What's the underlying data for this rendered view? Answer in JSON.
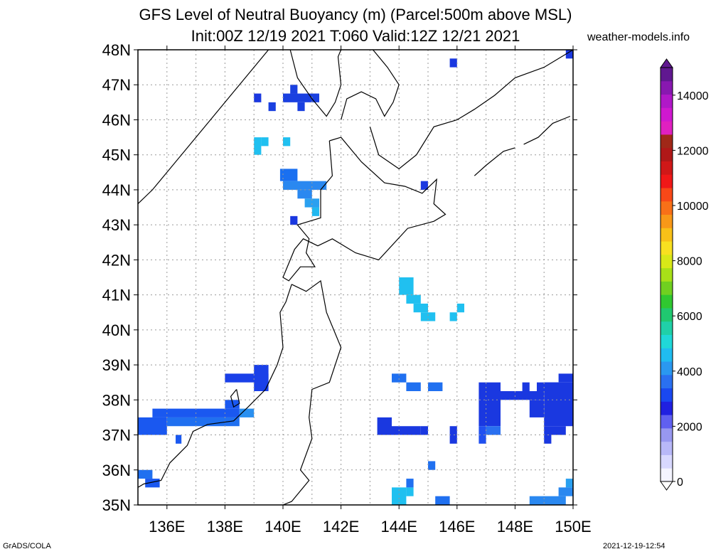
{
  "title_line1": "GFS Level of Neutral Buoyancy (m) (Parcel:500m above MSL)",
  "title_line2": "Init:00Z 12/19 2021 T:060 Valid:12Z 12/21 2021",
  "site": "weather-models.info",
  "footer_left": "GrADS/COLA",
  "footer_right": "2021-12-19-12:54",
  "map": {
    "lon_range": [
      135,
      150
    ],
    "lat_range": [
      35,
      48
    ],
    "lat_labels": [
      "48N",
      "47N",
      "46N",
      "45N",
      "44N",
      "43N",
      "42N",
      "41N",
      "40N",
      "39N",
      "38N",
      "37N",
      "36N",
      "35N"
    ],
    "lon_labels": [
      "136E",
      "138E",
      "140E",
      "142E",
      "144E",
      "146E",
      "148E",
      "150E"
    ],
    "grid": "dotted"
  },
  "colorbar": {
    "labels": [
      "0",
      "2000",
      "4000",
      "6000",
      "8000",
      "10000",
      "12000",
      "14000"
    ],
    "colors": [
      "#f4f4ff",
      "#d8d8ff",
      "#b8b8f8",
      "#9898f0",
      "#6060f0",
      "#2020e0",
      "#1a48f0",
      "#2a70f0",
      "#2a98f0",
      "#20bcf0",
      "#20d8d8",
      "#20d0a8",
      "#20c870",
      "#30c830",
      "#70d020",
      "#a8e018",
      "#d8e818",
      "#f8e020",
      "#f8c018",
      "#f89818",
      "#f87018",
      "#f84818",
      "#f01818",
      "#d01818",
      "#b01818",
      "#a02818",
      "#e020c0",
      "#d018d0",
      "#b018c8",
      "#8818b0",
      "#601890"
    ]
  },
  "data_cells": [
    {
      "lon": 138.0,
      "lat": 38.5,
      "lon2": 139.5,
      "lat2": 38.75,
      "color": "#1a40e8"
    },
    {
      "lon": 139.0,
      "lat": 38.25,
      "lon2": 139.5,
      "lat2": 39.0,
      "color": "#1a40e8"
    },
    {
      "lon": 135.0,
      "lat": 37.0,
      "lon2": 136.0,
      "lat2": 37.5,
      "color": "#1a58f0"
    },
    {
      "lon": 135.5,
      "lat": 37.5,
      "lon2": 138.5,
      "lat2": 37.75,
      "color": "#1a58f0"
    },
    {
      "lon": 136.0,
      "lat": 37.25,
      "lon2": 138.5,
      "lat2": 37.5,
      "color": "#2070f0"
    },
    {
      "lon": 138.0,
      "lat": 37.75,
      "lon2": 138.5,
      "lat2": 38.0,
      "color": "#1a58f0"
    },
    {
      "lon": 138.5,
      "lat": 37.5,
      "lon2": 139.0,
      "lat2": 37.75,
      "color": "#2a90f0"
    },
    {
      "lon": 136.3,
      "lat": 36.75,
      "lon2": 136.5,
      "lat2": 37.0,
      "color": "#1a58f0"
    },
    {
      "lon": 135.0,
      "lat": 35.75,
      "lon2": 135.5,
      "lat2": 36.0,
      "color": "#2070f0"
    },
    {
      "lon": 135.25,
      "lat": 35.5,
      "lon2": 135.75,
      "lat2": 35.75,
      "color": "#1a58f0"
    },
    {
      "lon": 139.9,
      "lat": 44.25,
      "lon2": 140.5,
      "lat2": 44.6,
      "color": "#1a70f0"
    },
    {
      "lon": 140.0,
      "lat": 44.0,
      "lon2": 141.5,
      "lat2": 44.25,
      "color": "#2a88f0"
    },
    {
      "lon": 140.5,
      "lat": 43.75,
      "lon2": 141.0,
      "lat2": 44.0,
      "color": "#2a88f0"
    },
    {
      "lon": 140.75,
      "lat": 43.5,
      "lon2": 141.25,
      "lat2": 43.75,
      "color": "#2aa0f0"
    },
    {
      "lon": 141.0,
      "lat": 43.25,
      "lon2": 141.25,
      "lat2": 43.5,
      "color": "#20b8f0"
    },
    {
      "lon": 140.25,
      "lat": 43.0,
      "lon2": 140.5,
      "lat2": 43.25,
      "color": "#1a38e0"
    },
    {
      "lon": 139.0,
      "lat": 45.0,
      "lon2": 139.25,
      "lat2": 45.5,
      "color": "#20c0f0"
    },
    {
      "lon": 139.25,
      "lat": 45.25,
      "lon2": 139.5,
      "lat2": 45.5,
      "color": "#20c0f0"
    },
    {
      "lon": 140.0,
      "lat": 45.25,
      "lon2": 140.25,
      "lat2": 45.5,
      "color": "#20c0f0"
    },
    {
      "lon": 139.0,
      "lat": 46.5,
      "lon2": 139.25,
      "lat2": 46.75,
      "color": "#1a38e0"
    },
    {
      "lon": 139.5,
      "lat": 46.25,
      "lon2": 139.75,
      "lat2": 46.5,
      "color": "#1a40e0"
    },
    {
      "lon": 140.0,
      "lat": 46.5,
      "lon2": 141.25,
      "lat2": 46.75,
      "color": "#1a40e0"
    },
    {
      "lon": 140.25,
      "lat": 46.75,
      "lon2": 140.5,
      "lat2": 47.0,
      "color": "#1a40e0"
    },
    {
      "lon": 140.5,
      "lat": 46.25,
      "lon2": 140.75,
      "lat2": 46.5,
      "color": "#1a40e0"
    },
    {
      "lon": 145.75,
      "lat": 47.5,
      "lon2": 146.0,
      "lat2": 47.75,
      "color": "#1a38e0"
    },
    {
      "lon": 149.75,
      "lat": 47.75,
      "lon2": 150.0,
      "lat2": 48.0,
      "color": "#1a38e0"
    },
    {
      "lon": 144.75,
      "lat": 44.0,
      "lon2": 145.0,
      "lat2": 44.25,
      "color": "#1a38e0"
    },
    {
      "lon": 144.0,
      "lat": 41.0,
      "lon2": 144.5,
      "lat2": 41.5,
      "color": "#20c0f0"
    },
    {
      "lon": 144.25,
      "lat": 40.75,
      "lon2": 144.75,
      "lat2": 41.0,
      "color": "#20c0f0"
    },
    {
      "lon": 144.5,
      "lat": 40.5,
      "lon2": 145.0,
      "lat2": 40.75,
      "color": "#20c0f0"
    },
    {
      "lon": 144.75,
      "lat": 40.25,
      "lon2": 145.25,
      "lat2": 40.5,
      "color": "#20c0f0"
    },
    {
      "lon": 145.75,
      "lat": 40.25,
      "lon2": 146.0,
      "lat2": 40.5,
      "color": "#20c0f0"
    },
    {
      "lon": 146.0,
      "lat": 40.5,
      "lon2": 146.25,
      "lat2": 40.75,
      "color": "#20c0f0"
    },
    {
      "lon": 143.75,
      "lat": 38.5,
      "lon2": 144.25,
      "lat2": 38.75,
      "color": "#2070f0"
    },
    {
      "lon": 144.25,
      "lat": 38.25,
      "lon2": 144.75,
      "lat2": 38.5,
      "color": "#2070f0"
    },
    {
      "lon": 145.0,
      "lat": 38.25,
      "lon2": 145.5,
      "lat2": 38.5,
      "color": "#2070f0"
    },
    {
      "lon": 143.25,
      "lat": 37.0,
      "lon2": 143.75,
      "lat2": 37.5,
      "color": "#1a38e0"
    },
    {
      "lon": 143.75,
      "lat": 37.0,
      "lon2": 144.75,
      "lat2": 37.25,
      "color": "#1a38e0"
    },
    {
      "lon": 144.75,
      "lat": 37.0,
      "lon2": 145.0,
      "lat2": 37.25,
      "color": "#1a38e0"
    },
    {
      "lon": 145.75,
      "lat": 36.75,
      "lon2": 146.0,
      "lat2": 37.25,
      "color": "#1a38e0"
    },
    {
      "lon": 145.0,
      "lat": 36.0,
      "lon2": 145.25,
      "lat2": 36.25,
      "color": "#2070f0"
    },
    {
      "lon": 146.75,
      "lat": 37.25,
      "lon2": 147.5,
      "lat2": 38.5,
      "color": "#1a38e0"
    },
    {
      "lon": 147.5,
      "lat": 38.0,
      "lon2": 149.0,
      "lat2": 38.25,
      "color": "#1a38e0"
    },
    {
      "lon": 146.75,
      "lat": 36.75,
      "lon2": 147.0,
      "lat2": 37.25,
      "color": "#2050f0"
    },
    {
      "lon": 147.0,
      "lat": 37.0,
      "lon2": 147.5,
      "lat2": 37.25,
      "color": "#2a70f0"
    },
    {
      "lon": 148.25,
      "lat": 38.25,
      "lon2": 148.5,
      "lat2": 38.5,
      "color": "#1a38e0"
    },
    {
      "lon": 148.75,
      "lat": 38.25,
      "lon2": 149.5,
      "lat2": 38.5,
      "color": "#1a38e0"
    },
    {
      "lon": 149.5,
      "lat": 38.5,
      "lon2": 150.0,
      "lat2": 38.75,
      "color": "#1a38e0"
    },
    {
      "lon": 149.0,
      "lat": 37.25,
      "lon2": 150.0,
      "lat2": 38.5,
      "color": "#1a38e0"
    },
    {
      "lon": 148.5,
      "lat": 37.5,
      "lon2": 149.0,
      "lat2": 38.0,
      "color": "#1a38e0"
    },
    {
      "lon": 149.0,
      "lat": 37.0,
      "lon2": 149.75,
      "lat2": 37.25,
      "color": "#1a38e0"
    },
    {
      "lon": 149.0,
      "lat": 36.75,
      "lon2": 149.25,
      "lat2": 37.0,
      "color": "#1a38e0"
    },
    {
      "lon": 143.75,
      "lat": 35.0,
      "lon2": 144.25,
      "lat2": 35.5,
      "color": "#20c0f0"
    },
    {
      "lon": 144.25,
      "lat": 35.25,
      "lon2": 144.5,
      "lat2": 35.5,
      "color": "#20c0f0"
    },
    {
      "lon": 144.25,
      "lat": 35.5,
      "lon2": 144.5,
      "lat2": 35.75,
      "color": "#2070f0"
    },
    {
      "lon": 145.25,
      "lat": 35.0,
      "lon2": 145.75,
      "lat2": 35.25,
      "color": "#2070f0"
    },
    {
      "lon": 148.5,
      "lat": 35.0,
      "lon2": 149.75,
      "lat2": 35.25,
      "color": "#2a88f0"
    },
    {
      "lon": 149.5,
      "lat": 35.25,
      "lon2": 150.0,
      "lat2": 35.5,
      "color": "#2a88f0"
    },
    {
      "lon": 149.75,
      "lat": 35.5,
      "lon2": 150.0,
      "lat2": 35.75,
      "color": "#2aa0f0"
    }
  ],
  "coastlines": [
    [
      [
        140.25,
        48.0
      ],
      [
        140.5,
        47.2
      ],
      [
        141.0,
        46.6
      ],
      [
        141.5,
        46.1
      ],
      [
        141.8,
        46.5
      ],
      [
        142.0,
        47.0
      ],
      [
        141.9,
        47.8
      ],
      [
        142.0,
        48.0
      ]
    ],
    [
      [
        142.0,
        46.0
      ],
      [
        142.2,
        46.6
      ],
      [
        142.7,
        46.8
      ],
      [
        143.2,
        46.6
      ],
      [
        143.5,
        46.1
      ],
      [
        143.8,
        46.5
      ],
      [
        144.0,
        47.0
      ],
      [
        143.6,
        47.5
      ],
      [
        143.2,
        47.9
      ],
      [
        143.1,
        48.0
      ]
    ],
    [
      [
        135.0,
        43.6
      ],
      [
        135.5,
        44.0
      ],
      [
        136.5,
        45.0
      ],
      [
        137.5,
        46.0
      ],
      [
        138.5,
        47.0
      ],
      [
        139.5,
        48.0
      ]
    ],
    [
      [
        141.6,
        45.4
      ],
      [
        142.0,
        45.5
      ],
      [
        142.7,
        44.8
      ],
      [
        143.5,
        44.2
      ],
      [
        144.2,
        44.1
      ],
      [
        144.8,
        43.9
      ],
      [
        145.3,
        44.3
      ],
      [
        145.2,
        43.6
      ],
      [
        145.6,
        43.3
      ],
      [
        145.2,
        43.1
      ],
      [
        144.3,
        42.9
      ],
      [
        143.3,
        42.0
      ],
      [
        142.5,
        42.2
      ],
      [
        141.7,
        42.6
      ],
      [
        141.2,
        42.4
      ],
      [
        140.7,
        42.6
      ],
      [
        140.4,
        42.3
      ],
      [
        140.0,
        41.5
      ],
      [
        140.2,
        41.4
      ],
      [
        140.6,
        41.8
      ],
      [
        141.1,
        41.8
      ],
      [
        140.8,
        42.2
      ],
      [
        140.9,
        42.6
      ],
      [
        140.5,
        43.0
      ],
      [
        141.3,
        43.2
      ],
      [
        141.3,
        44.0
      ],
      [
        141.7,
        44.4
      ],
      [
        141.6,
        45.4
      ]
    ],
    [
      [
        140.3,
        41.3
      ],
      [
        140.8,
        41.1
      ],
      [
        141.3,
        41.4
      ],
      [
        141.5,
        40.5
      ],
      [
        142.0,
        39.5
      ],
      [
        141.6,
        38.5
      ],
      [
        141.0,
        38.3
      ],
      [
        140.9,
        37.5
      ],
      [
        141.0,
        36.9
      ],
      [
        140.6,
        36.0
      ],
      [
        140.9,
        35.7
      ],
      [
        140.3,
        35.1
      ],
      [
        140.0,
        35.0
      ]
    ],
    [
      [
        140.3,
        41.3
      ],
      [
        140.1,
        40.8
      ],
      [
        139.9,
        40.5
      ],
      [
        140.0,
        39.5
      ],
      [
        139.8,
        39.0
      ],
      [
        139.4,
        38.3
      ],
      [
        138.8,
        37.8
      ],
      [
        138.3,
        37.4
      ],
      [
        137.4,
        37.3
      ],
      [
        136.9,
        37.1
      ],
      [
        136.7,
        36.7
      ],
      [
        136.1,
        36.2
      ],
      [
        135.8,
        35.7
      ],
      [
        135.2,
        35.6
      ],
      [
        135.0,
        35.5
      ]
    ],
    [
      [
        138.4,
        38.3
      ],
      [
        138.5,
        37.9
      ],
      [
        138.3,
        37.8
      ],
      [
        138.2,
        38.1
      ],
      [
        138.4,
        38.3
      ]
    ],
    [
      [
        143.0,
        45.8
      ],
      [
        143.3,
        45.0
      ],
      [
        144.0,
        44.6
      ],
      [
        144.6,
        45.0
      ],
      [
        145.2,
        45.8
      ],
      [
        146.0,
        46.0
      ],
      [
        146.6,
        46.3
      ],
      [
        147.3,
        46.7
      ],
      [
        148.0,
        47.2
      ],
      [
        149.0,
        47.5
      ],
      [
        150.0,
        48.0
      ]
    ],
    [
      [
        148.3,
        45.3
      ],
      [
        148.8,
        45.5
      ],
      [
        149.3,
        45.9
      ],
      [
        149.9,
        46.1
      ]
    ],
    [
      [
        146.6,
        44.4
      ],
      [
        147.0,
        44.7
      ],
      [
        147.6,
        45.1
      ],
      [
        148.0,
        45.2
      ]
    ]
  ]
}
